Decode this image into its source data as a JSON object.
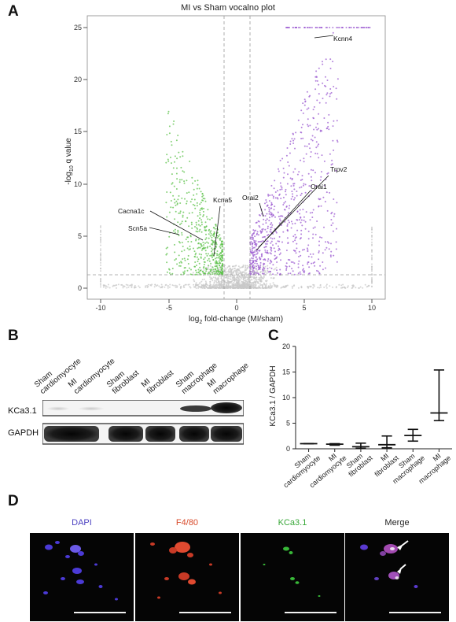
{
  "panels": {
    "A": "A",
    "B": "B",
    "C": "C",
    "D": "D"
  },
  "volcano": {
    "title": "MI vs Sham vocalno plot",
    "xlabel_parts": [
      "log",
      "2",
      " fold-change (MI/sham)"
    ],
    "ylabel_parts": [
      "-log",
      "10",
      " q value"
    ],
    "x_ticks": [
      "-10",
      "-5",
      "0",
      "5",
      "10"
    ],
    "y_ticks": [
      "0",
      "5",
      "10",
      "15",
      "20",
      "25"
    ],
    "genes": [
      "Kcnn4",
      "Trpv2",
      "Orai1",
      "Orai2",
      "Kcna5",
      "Cacna1c",
      "Scn5a"
    ],
    "colors": {
      "up": "#9b59d0",
      "down": "#5cc24a",
      "ns": "#c8c8c8",
      "threshold": "#9a9a9a"
    }
  },
  "chart_data": [
    {
      "type": "scatter",
      "title": "MI vs Sham vocalno plot",
      "xlabel": "log2 fold-change (MI/sham)",
      "ylabel": "-log10 q value",
      "xlim": [
        -10,
        10
      ],
      "ylim": [
        0,
        25
      ],
      "thresholds": {
        "fold_change": [
          -1,
          1
        ],
        "q_value_line": 1.3
      },
      "annotations": [
        {
          "gene": "Kcnn4",
          "x": 6.0,
          "y": 24.5
        },
        {
          "gene": "Trpv2",
          "x": 1.5,
          "y": 4.5
        },
        {
          "gene": "Orai1",
          "x": 1.0,
          "y": 3.5
        },
        {
          "gene": "Orai2",
          "x": 1.0,
          "y": 7.0
        },
        {
          "gene": "Kcna5",
          "x": -1.5,
          "y": 3.0
        },
        {
          "gene": "Cacna1c",
          "x": -2.0,
          "y": 4.5
        },
        {
          "gene": "Scn5a",
          "x": -2.5,
          "y": 5.0
        }
      ]
    },
    {
      "type": "box",
      "xlabel": "",
      "ylabel": "KCa3.1 / GAPDH",
      "ylim": [
        0,
        20
      ],
      "yticks": [
        0,
        5,
        10,
        15,
        20
      ],
      "categories": [
        "Sham cardiomyocyte",
        "MI cardiomyocyte",
        "Sham fibroblast",
        "MI fibroblast",
        "Sham macrophage",
        "MI macrophage"
      ],
      "series": [
        {
          "values": [
            {
              "min": 1.0,
              "median": 1.0,
              "max": 1.0
            },
            {
              "min": 0.7,
              "median": 0.9,
              "max": 1.0
            },
            {
              "min": 0.1,
              "median": 0.4,
              "max": 1.1
            },
            {
              "min": 0.2,
              "median": 0.8,
              "max": 2.5
            },
            {
              "min": 1.5,
              "median": 2.6,
              "max": 3.8
            },
            {
              "min": 5.5,
              "median": 7.0,
              "max": 15.4
            }
          ]
        }
      ]
    }
  ],
  "blot": {
    "lanes": [
      [
        "Sham",
        "cardiomyocyte"
      ],
      [
        "MI",
        "cardiomyocyte"
      ],
      [
        "Sham",
        "fibroblast"
      ],
      [
        "MI",
        "fibroblast"
      ],
      [
        "Sham",
        "macrophage"
      ],
      [
        "MI",
        "macrophage"
      ]
    ],
    "rows": [
      "KCa3.1",
      "GAPDH"
    ]
  },
  "barplot": {
    "ylabel": "KCa3.1 / GAPDH",
    "yticks": [
      "0",
      "5",
      "10",
      "15",
      "20"
    ],
    "xlabels": [
      "Sham",
      "cardiomyocyte",
      "MI",
      "cardiomyocyte",
      "Sham",
      "fibroblast",
      "MI",
      "fibroblast",
      "Sham",
      "macrophage",
      "MI",
      "macrophage"
    ]
  },
  "microscopy": {
    "labels": [
      {
        "text": "DAPI",
        "color": "#4a3fc0"
      },
      {
        "text": "F4/80",
        "color": "#d84a2a"
      },
      {
        "text": "KCa3.1",
        "color": "#3aa83a"
      },
      {
        "text": "Merge",
        "color": "#222222"
      }
    ]
  }
}
